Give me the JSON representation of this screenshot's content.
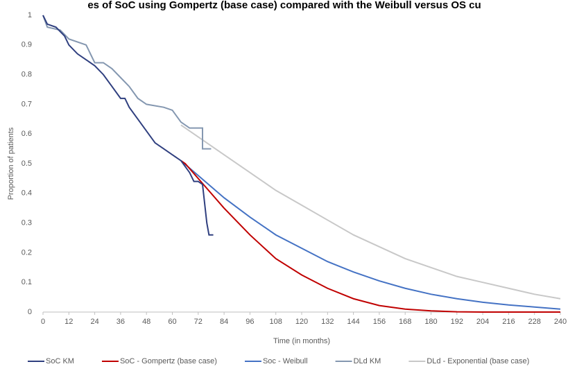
{
  "chart_data": {
    "type": "line",
    "title": "es of SoC using Gompertz (base case) compared with the Weibull versus OS cu",
    "x_label": "Time (in months)",
    "y_label": "Proportion of patients",
    "xlim": [
      0,
      240
    ],
    "ylim": [
      0,
      1
    ],
    "xticks": [
      0,
      12,
      24,
      36,
      48,
      60,
      72,
      84,
      96,
      108,
      120,
      132,
      144,
      156,
      168,
      180,
      192,
      204,
      216,
      228,
      240
    ],
    "yticks": [
      0,
      0.1,
      0.2,
      0.3,
      0.4,
      0.5,
      0.6,
      0.7,
      0.8,
      0.9,
      1
    ],
    "legend": "bottom",
    "series": [
      {
        "name": "SoC KM",
        "color": "#2f3f7f",
        "x": [
          0,
          2,
          6,
          10,
          12,
          16,
          20,
          24,
          28,
          32,
          36,
          38,
          40,
          44,
          48,
          52,
          56,
          60,
          64,
          66,
          68,
          70,
          72,
          74,
          76,
          77,
          79
        ],
        "values": [
          1,
          0.97,
          0.96,
          0.93,
          0.9,
          0.87,
          0.85,
          0.83,
          0.8,
          0.76,
          0.72,
          0.72,
          0.69,
          0.65,
          0.61,
          0.57,
          0.55,
          0.53,
          0.51,
          0.49,
          0.47,
          0.44,
          0.44,
          0.43,
          0.3,
          0.26,
          0.26
        ]
      },
      {
        "name": "SoC - Gompertz (base case)",
        "color": "#c00000",
        "x": [
          64,
          66,
          72,
          84,
          96,
          108,
          120,
          132,
          144,
          156,
          168,
          180,
          192,
          204,
          216,
          228,
          240
        ],
        "values": [
          0.51,
          0.5,
          0.45,
          0.35,
          0.26,
          0.18,
          0.125,
          0.08,
          0.045,
          0.022,
          0.01,
          0.004,
          0.001,
          0,
          0,
          0,
          0
        ]
      },
      {
        "name": "Soc - Weibull",
        "color": "#4472c4",
        "x": [
          64,
          72,
          84,
          96,
          108,
          120,
          132,
          144,
          156,
          168,
          180,
          192,
          204,
          216,
          228,
          240
        ],
        "values": [
          0.51,
          0.46,
          0.385,
          0.32,
          0.26,
          0.215,
          0.17,
          0.135,
          0.105,
          0.08,
          0.06,
          0.045,
          0.033,
          0.024,
          0.017,
          0.01
        ]
      },
      {
        "name": "DLd KM",
        "color": "#8497b0",
        "x": [
          0,
          2,
          8,
          12,
          20,
          24,
          28,
          32,
          36,
          40,
          44,
          48,
          56,
          60,
          64,
          68,
          74,
          74,
          78
        ],
        "values": [
          1,
          0.96,
          0.95,
          0.92,
          0.9,
          0.84,
          0.84,
          0.82,
          0.79,
          0.76,
          0.72,
          0.7,
          0.69,
          0.68,
          0.64,
          0.62,
          0.62,
          0.55,
          0.55
        ]
      },
      {
        "name": "DLd - Exponential (base case)",
        "color": "#c8c8c8",
        "x": [
          64,
          72,
          84,
          96,
          108,
          120,
          132,
          144,
          156,
          168,
          180,
          192,
          204,
          216,
          228,
          240
        ],
        "values": [
          0.63,
          0.59,
          0.53,
          0.47,
          0.41,
          0.36,
          0.31,
          0.26,
          0.22,
          0.18,
          0.15,
          0.12,
          0.1,
          0.08,
          0.06,
          0.045
        ]
      }
    ]
  }
}
